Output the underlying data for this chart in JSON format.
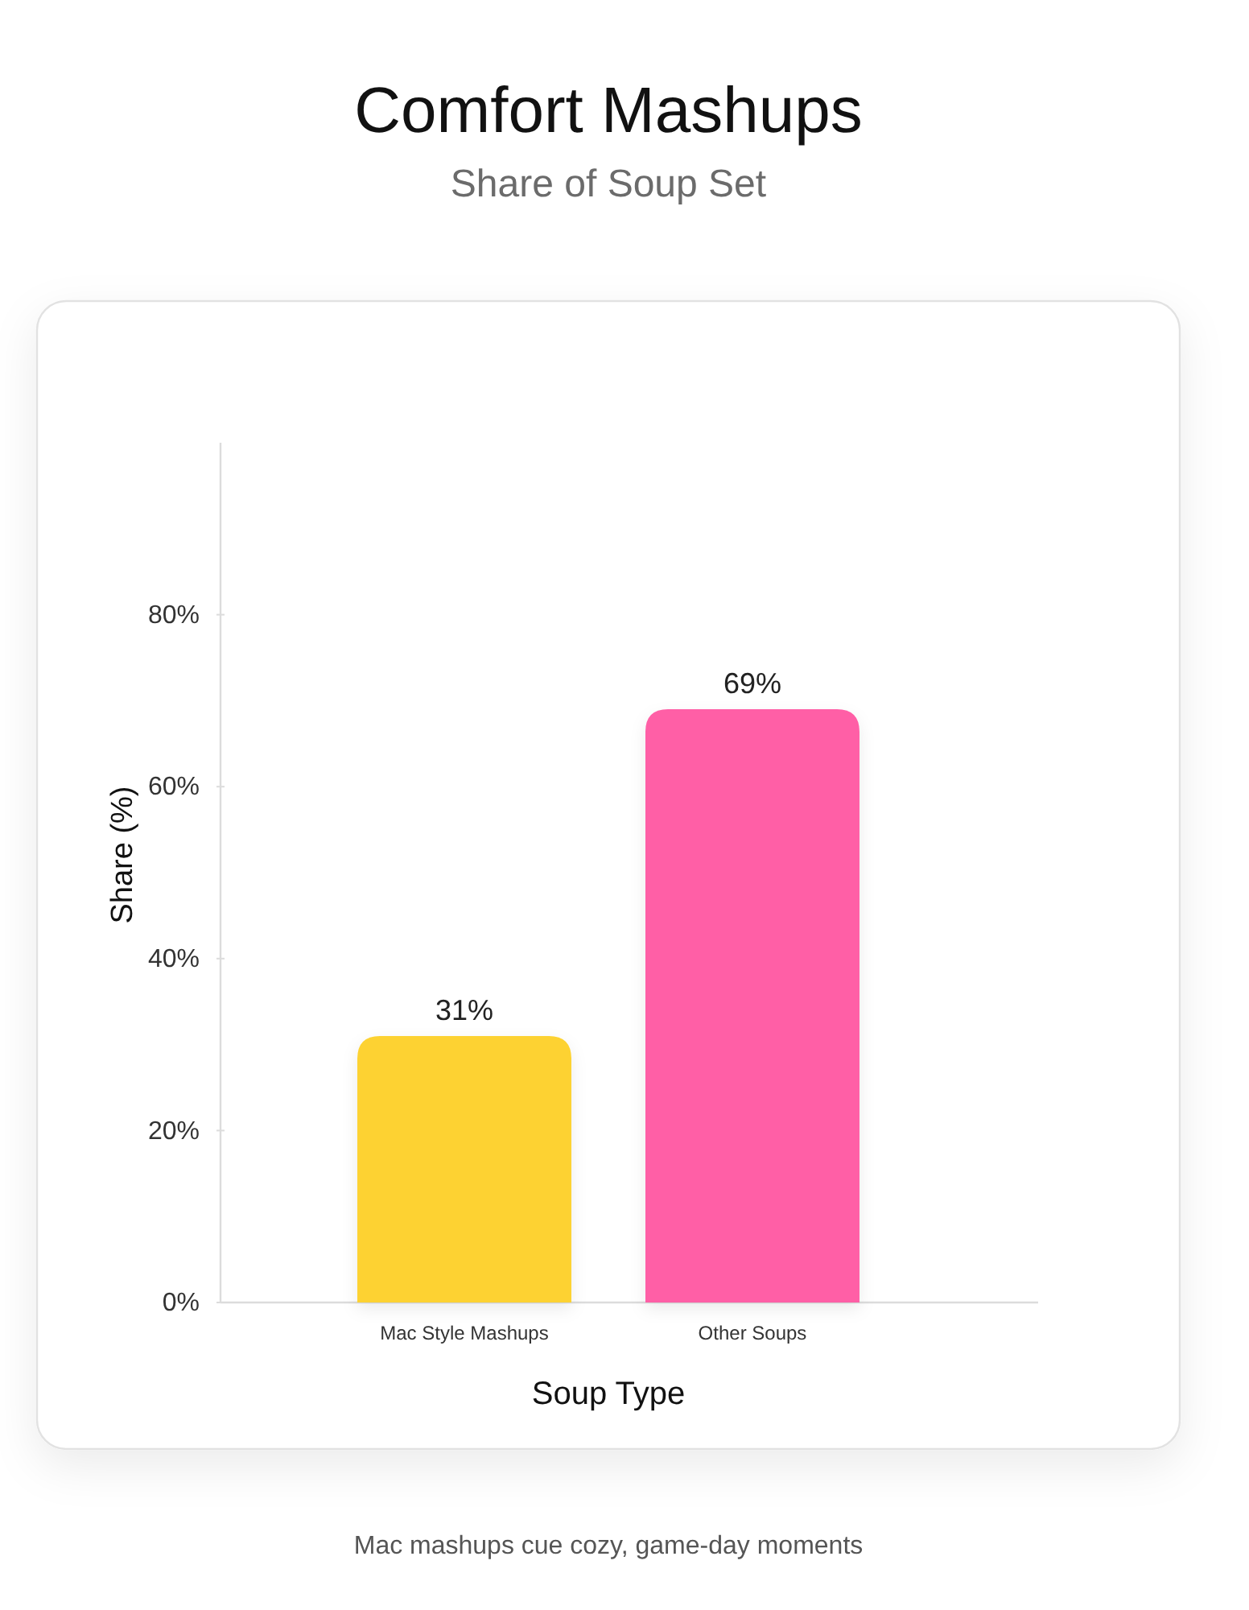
{
  "chart_data": {
    "type": "bar",
    "title": "Comfort Mashups",
    "subtitle": "Share of Soup Set",
    "xlabel": "Soup Type",
    "ylabel": "Share (%)",
    "categories": [
      "Mac Style Mashups",
      "Other Soups"
    ],
    "values": [
      31,
      69
    ],
    "colors": [
      "#fdd230",
      "#ff5ea6"
    ],
    "value_labels": [
      "31%",
      "69%"
    ],
    "ylim": [
      0,
      100
    ],
    "yticks": [
      {
        "value": 0,
        "label": "0%"
      },
      {
        "value": 20,
        "label": "20%"
      },
      {
        "value": 40,
        "label": "40%"
      },
      {
        "value": 60,
        "label": "60%"
      },
      {
        "value": 80,
        "label": "80%"
      }
    ],
    "annotations": [
      "Mac mashups cue cozy, game-day moments"
    ]
  }
}
